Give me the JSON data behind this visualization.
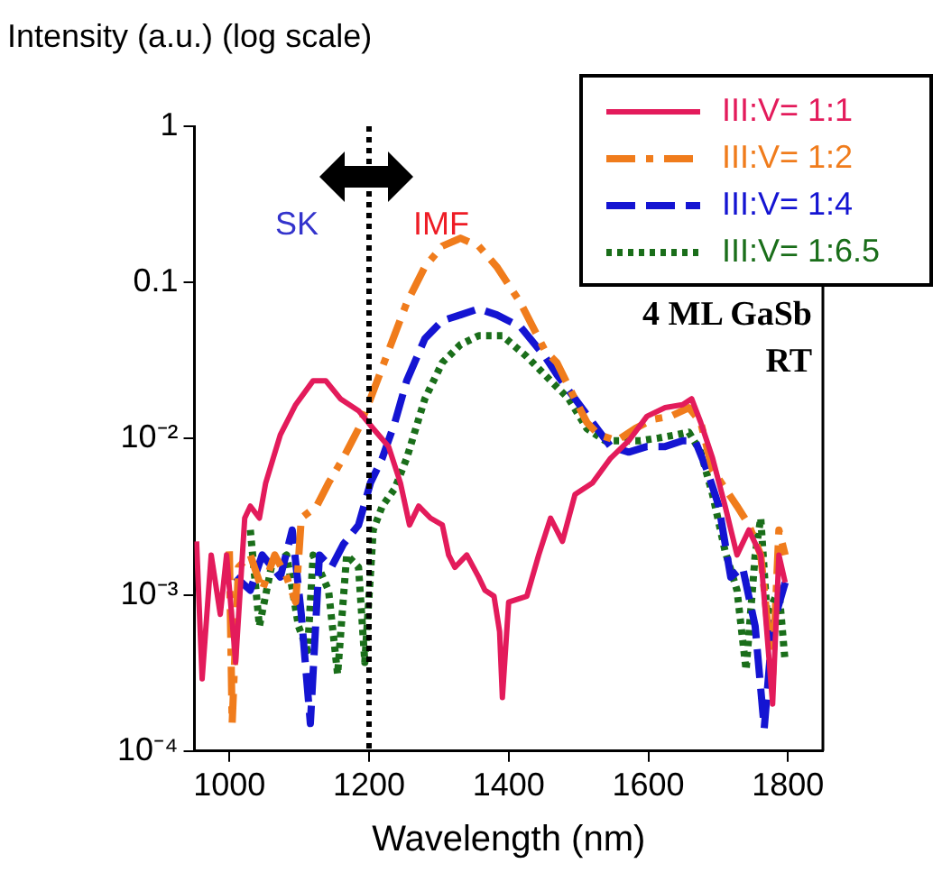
{
  "chart_data": {
    "type": "line",
    "ylabel": "Intensity (a.u.) (log scale)",
    "xlabel": "Wavelength (nm)",
    "log": "y",
    "xlim": [
      950,
      1850
    ],
    "xticks": [
      1000,
      1200,
      1400,
      1600,
      1800
    ],
    "ylim": [
      0.0001,
      1
    ],
    "yticks": [
      {
        "value": 0.0001,
        "label": "10⁻⁴"
      },
      {
        "value": 0.001,
        "label": "10⁻³"
      },
      {
        "value": 0.01,
        "label": "10⁻²"
      },
      {
        "value": 0.1,
        "label": "0.1"
      },
      {
        "value": 1,
        "label": "1"
      }
    ],
    "grid": false,
    "legend": "top right",
    "marker": "none",
    "series": [
      {
        "name": "III:V= 1:1",
        "color": "#e31b5b",
        "line_style": "solid",
        "x": [
          953,
          961,
          974,
          987,
          996,
          1009,
          1022,
          1030,
          1043,
          1052,
          1073,
          1095,
          1120,
          1138,
          1159,
          1185,
          1206,
          1228,
          1245,
          1258,
          1271,
          1288,
          1305,
          1314,
          1323,
          1340,
          1357,
          1366,
          1379,
          1387,
          1391,
          1400,
          1426,
          1443,
          1460,
          1477,
          1495,
          1520,
          1546,
          1572,
          1598,
          1624,
          1649,
          1662,
          1675,
          1692,
          1710,
          1727,
          1744,
          1761,
          1778,
          1787,
          1796
        ],
        "values": [
          0.0022,
          0.00029,
          0.0018,
          0.00075,
          0.0018,
          0.00037,
          0.0031,
          0.0037,
          0.0031,
          0.0052,
          0.0106,
          0.0165,
          0.0235,
          0.0235,
          0.018,
          0.0151,
          0.0116,
          0.0089,
          0.0052,
          0.0028,
          0.0037,
          0.0031,
          0.0028,
          0.0018,
          0.0015,
          0.0018,
          0.0013,
          0.00107,
          0.00098,
          0.00058,
          0.00022,
          0.0009,
          0.00098,
          0.0018,
          0.0031,
          0.0022,
          0.0044,
          0.0052,
          0.0075,
          0.0097,
          0.0139,
          0.0158,
          0.0165,
          0.018,
          0.0127,
          0.0075,
          0.0037,
          0.0018,
          0.0026,
          0.0018,
          0.0002,
          0.0018,
          0.0012
        ]
      },
      {
        "name": "III:V= 1:2",
        "color": "#f07c1c",
        "line_style": "dashdot",
        "x": [
          1000,
          1004,
          1013,
          1030,
          1047,
          1065,
          1082,
          1095,
          1103,
          1125,
          1142,
          1163,
          1185,
          1202,
          1228,
          1254,
          1280,
          1305,
          1331,
          1357,
          1383,
          1417,
          1452,
          1469,
          1486,
          1512,
          1529,
          1555,
          1581,
          1606,
          1632,
          1658,
          1675,
          1692,
          1710,
          1727,
          1744,
          1761,
          1778,
          1787,
          1796
        ],
        "values": [
          0.0019,
          0.00015,
          0.0015,
          0.0018,
          0.00107,
          0.0018,
          0.0013,
          0.0009,
          0.0031,
          0.0037,
          0.0052,
          0.0075,
          0.0116,
          0.018,
          0.0366,
          0.074,
          0.126,
          0.171,
          0.192,
          0.171,
          0.126,
          0.074,
          0.0366,
          0.0307,
          0.0215,
          0.0127,
          0.0106,
          0.0097,
          0.0116,
          0.0133,
          0.0139,
          0.0158,
          0.0127,
          0.0063,
          0.0048,
          0.0037,
          0.0028,
          0.0018,
          0.00031,
          0.0026,
          0.0018
        ]
      },
      {
        "name": "III:V= 1:4",
        "color": "#1414d2",
        "line_style": "dashed",
        "x": [
          1009,
          1030,
          1047,
          1073,
          1090,
          1103,
          1116,
          1129,
          1146,
          1163,
          1185,
          1202,
          1219,
          1237,
          1254,
          1280,
          1305,
          1331,
          1357,
          1383,
          1417,
          1452,
          1469,
          1495,
          1520,
          1546,
          1572,
          1598,
          1624,
          1649,
          1667,
          1684,
          1701,
          1718,
          1735,
          1753,
          1766,
          1778,
          1796
        ],
        "values": [
          0.0013,
          0.00107,
          0.0018,
          0.0013,
          0.0026,
          0.00075,
          0.00015,
          0.0018,
          0.0015,
          0.0021,
          0.0028,
          0.0052,
          0.0075,
          0.0127,
          0.0235,
          0.0437,
          0.0569,
          0.062,
          0.0678,
          0.062,
          0.052,
          0.0335,
          0.0257,
          0.018,
          0.0127,
          0.0089,
          0.0082,
          0.0089,
          0.0089,
          0.0097,
          0.0097,
          0.0063,
          0.0037,
          0.0013,
          0.0015,
          0.00063,
          0.00014,
          0.00063,
          0.0012
        ]
      },
      {
        "name": "III:V= 1:6.5",
        "color": "#1a6e1a",
        "line_style": "dotted",
        "x": [
          1030,
          1043,
          1060,
          1082,
          1099,
          1112,
          1120,
          1142,
          1155,
          1168,
          1185,
          1194,
          1206,
          1219,
          1237,
          1254,
          1280,
          1305,
          1331,
          1357,
          1391,
          1426,
          1460,
          1486,
          1512,
          1538,
          1563,
          1589,
          1615,
          1641,
          1658,
          1675,
          1692,
          1710,
          1727,
          1740,
          1753,
          1761,
          1770,
          1787,
          1796
        ],
        "values": [
          0.0026,
          0.00063,
          0.0015,
          0.0018,
          0.00063,
          0.00044,
          0.0018,
          0.00107,
          0.00031,
          0.0018,
          0.0015,
          0.00037,
          0.0026,
          0.0037,
          0.0048,
          0.0075,
          0.018,
          0.0307,
          0.04,
          0.0456,
          0.0456,
          0.0335,
          0.0235,
          0.018,
          0.0116,
          0.0097,
          0.0097,
          0.0097,
          0.0101,
          0.0106,
          0.011,
          0.0082,
          0.0044,
          0.0019,
          0.00107,
          0.00033,
          0.0018,
          0.0031,
          0.00075,
          0.00107,
          0.00037
        ]
      }
    ],
    "ref_lines": [
      {
        "axis": "x",
        "value": 1200,
        "color": "#000000",
        "line_style": "dotted"
      }
    ],
    "annotations": [
      "SK",
      "IMF",
      "4 ML GaSb",
      "RT"
    ]
  }
}
